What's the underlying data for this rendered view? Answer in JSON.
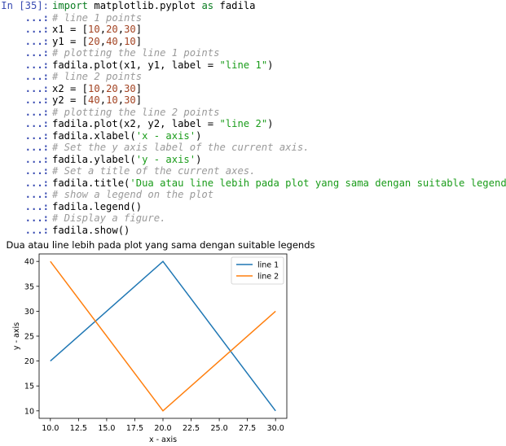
{
  "cell": {
    "in_prompt": "In [35]:",
    "cont_prompt": "...:",
    "lines": [
      [
        {
          "t": "import",
          "c": "kw"
        },
        {
          "t": " matplotlib.pyplot "
        },
        {
          "t": "as",
          "c": "kw"
        },
        {
          "t": " fadila"
        }
      ],
      [
        {
          "t": "# line 1 points",
          "c": "cmt"
        }
      ],
      [
        {
          "t": "x1 = ["
        },
        {
          "t": "10",
          "c": "num"
        },
        {
          "t": ","
        },
        {
          "t": "20",
          "c": "num"
        },
        {
          "t": ","
        },
        {
          "t": "30",
          "c": "num"
        },
        {
          "t": "]"
        }
      ],
      [
        {
          "t": "y1 = ["
        },
        {
          "t": "20",
          "c": "num"
        },
        {
          "t": ","
        },
        {
          "t": "40",
          "c": "num"
        },
        {
          "t": ","
        },
        {
          "t": "10",
          "c": "num"
        },
        {
          "t": "]"
        }
      ],
      [
        {
          "t": "# plotting the line 1 points",
          "c": "cmt"
        }
      ],
      [
        {
          "t": "fadila.plot(x1, y1, label = "
        },
        {
          "t": "\"line 1\"",
          "c": "str"
        },
        {
          "t": ")"
        }
      ],
      [
        {
          "t": "# line 2 points",
          "c": "cmt"
        }
      ],
      [
        {
          "t": "x2 = ["
        },
        {
          "t": "10",
          "c": "num"
        },
        {
          "t": ","
        },
        {
          "t": "20",
          "c": "num"
        },
        {
          "t": ","
        },
        {
          "t": "30",
          "c": "num"
        },
        {
          "t": "]"
        }
      ],
      [
        {
          "t": "y2 = ["
        },
        {
          "t": "40",
          "c": "num"
        },
        {
          "t": ","
        },
        {
          "t": "10",
          "c": "num"
        },
        {
          "t": ","
        },
        {
          "t": "30",
          "c": "num"
        },
        {
          "t": "]"
        }
      ],
      [
        {
          "t": "# plotting the line 2 points",
          "c": "cmt"
        }
      ],
      [
        {
          "t": "fadila.plot(x2, y2, label = "
        },
        {
          "t": "\"line 2\"",
          "c": "str"
        },
        {
          "t": ")"
        }
      ],
      [
        {
          "t": "fadila.xlabel("
        },
        {
          "t": "'x - axis'",
          "c": "str"
        },
        {
          "t": ")"
        }
      ],
      [
        {
          "t": "# Set the y axis label of the current axis.",
          "c": "cmt"
        }
      ],
      [
        {
          "t": "fadila.ylabel("
        },
        {
          "t": "'y - axis'",
          "c": "str"
        },
        {
          "t": ")"
        }
      ],
      [
        {
          "t": "# Set a title of the current axes.",
          "c": "cmt"
        }
      ],
      [
        {
          "t": "fadila.title("
        },
        {
          "t": "'Dua atau line lebih pada plot yang sama dengan suitable legends '",
          "c": "str"
        },
        {
          "t": ")"
        }
      ],
      [
        {
          "t": "# show a legend on the plot",
          "c": "cmt"
        }
      ],
      [
        {
          "t": "fadila.legend()"
        }
      ],
      [
        {
          "t": "# Display a figure.",
          "c": "cmt"
        }
      ],
      [
        {
          "t": "fadila.show()"
        }
      ]
    ]
  },
  "chart_data": {
    "type": "line",
    "title": "Dua atau line lebih pada plot yang sama dengan suitable legends",
    "xlabel": "x - axis",
    "ylabel": "y - axis",
    "xlim": [
      9.0,
      31.0
    ],
    "ylim": [
      8.5,
      41.5
    ],
    "xticks": [
      10.0,
      12.5,
      15.0,
      17.5,
      20.0,
      22.5,
      25.0,
      27.5,
      30.0
    ],
    "xtick_labels": [
      "10.0",
      "12.5",
      "15.0",
      "17.5",
      "20.0",
      "22.5",
      "25.0",
      "27.5",
      "30.0"
    ],
    "yticks": [
      10,
      15,
      20,
      25,
      30,
      35,
      40
    ],
    "ytick_labels": [
      "10",
      "15",
      "20",
      "25",
      "30",
      "35",
      "40"
    ],
    "grid": false,
    "legend_position": "top-right",
    "series": [
      {
        "name": "line 1",
        "color": "#1f77b4",
        "x": [
          10,
          20,
          30
        ],
        "y": [
          20,
          40,
          10
        ]
      },
      {
        "name": "line 2",
        "color": "#ff7f0e",
        "x": [
          10,
          20,
          30
        ],
        "y": [
          40,
          10,
          30
        ]
      }
    ]
  }
}
